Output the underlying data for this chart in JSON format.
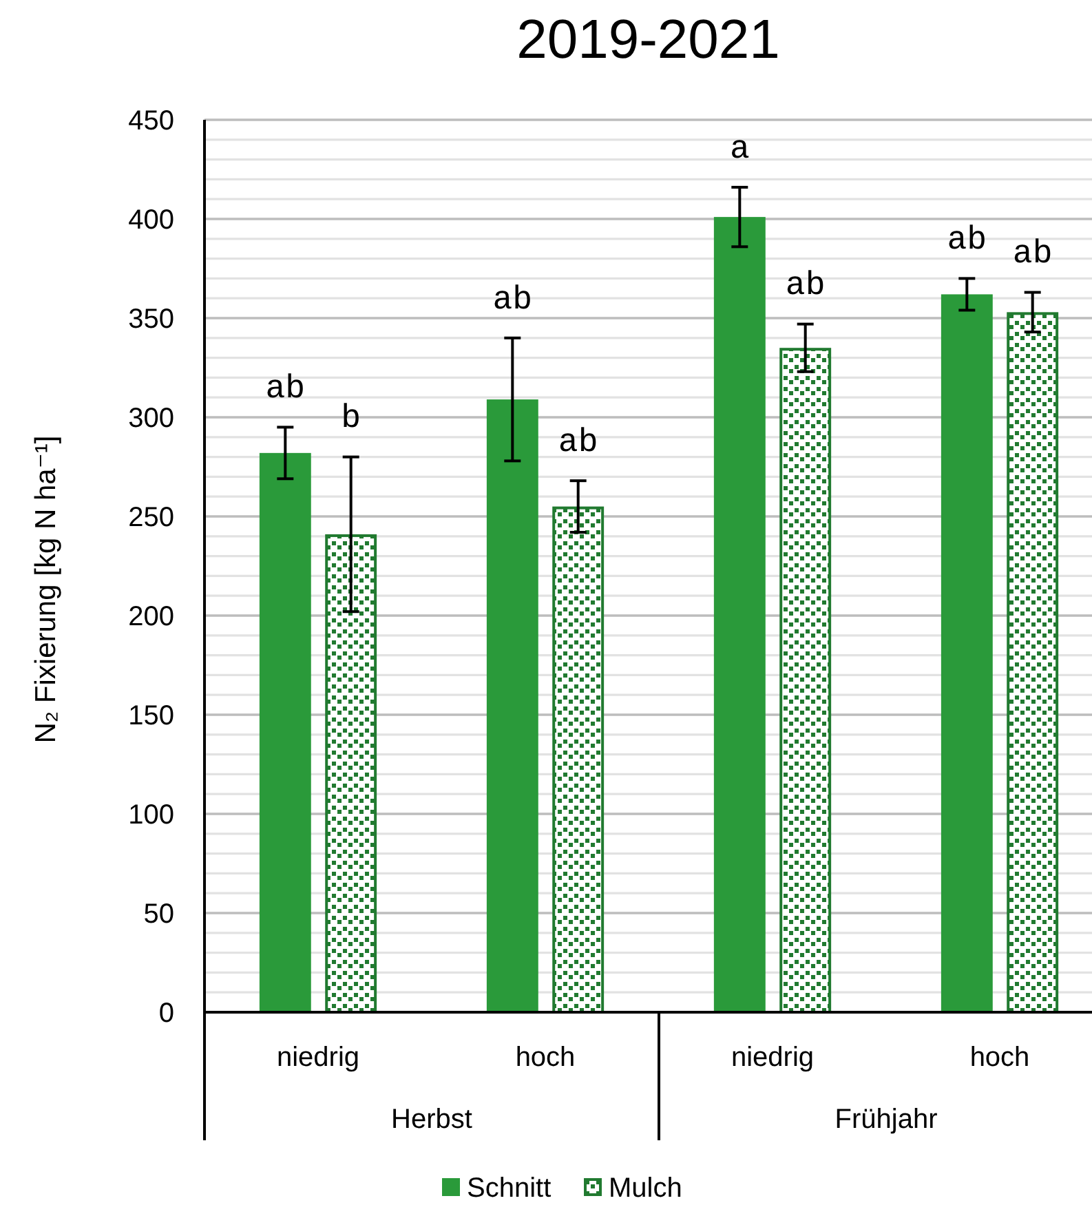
{
  "chart_data": {
    "type": "bar",
    "title": "2019-2021",
    "ylabel": "N₂ Fixierung [kg N ha⁻¹]",
    "categories": [
      "niedrig",
      "hoch",
      "niedrig",
      "hoch"
    ],
    "series": [
      {
        "name": "Schnitt",
        "color": "#2a9a3a",
        "values": [
          282,
          309,
          401,
          362
        ],
        "errors": [
          13,
          31,
          15,
          8
        ]
      },
      {
        "name": "Mulch",
        "color": "#217a30",
        "values": [
          241,
          255,
          335,
          353
        ],
        "errors": [
          39,
          13,
          12,
          10
        ]
      }
    ],
    "ylim": [
      0,
      450
    ],
    "yticks": [
      0,
      {
        "value": 10,
        "label": null
      },
      {
        "value": 20,
        "label": null
      },
      {
        "value": 30,
        "label": null
      },
      {
        "value": 40,
        "label": null
      },
      50,
      {
        "value": 60,
        "label": null
      },
      {
        "value": 70,
        "label": null
      },
      {
        "value": 80,
        "label": null
      },
      {
        "value": 90,
        "label": null
      },
      100,
      {
        "value": 110,
        "label": null
      },
      {
        "value": 120,
        "label": null
      },
      {
        "value": 130,
        "label": null
      },
      {
        "value": 140,
        "label": null
      },
      150,
      {
        "value": 160,
        "label": null
      },
      {
        "value": 170,
        "label": null
      },
      {
        "value": 180,
        "label": null
      },
      {
        "value": 190,
        "label": null
      },
      200,
      {
        "value": 210,
        "label": null
      },
      {
        "value": 220,
        "label": null
      },
      {
        "value": 230,
        "label": null
      },
      {
        "value": 240,
        "label": null
      },
      250,
      {
        "value": 260,
        "label": null
      },
      {
        "value": 270,
        "label": null
      },
      {
        "value": 280,
        "label": null
      },
      {
        "value": 290,
        "label": null
      },
      300,
      {
        "value": 310,
        "label": null
      },
      {
        "value": 320,
        "label": null
      },
      {
        "value": 330,
        "label": null
      },
      {
        "value": 340,
        "label": null
      },
      350,
      {
        "value": 360,
        "label": null
      },
      {
        "value": 370,
        "label": null
      },
      {
        "value": 380,
        "label": null
      },
      {
        "value": 390,
        "label": null
      },
      400,
      {
        "value": 410,
        "label": null
      },
      {
        "value": 420,
        "label": null
      },
      {
        "value": 430,
        "label": null
      },
      {
        "value": 440,
        "label": null
      },
      450
    ],
    "grid": "y",
    "legend": "bottom",
    "annotations": [
      "ab",
      "b",
      "ab",
      "ab",
      "a",
      "ab",
      "ab",
      "ab",
      "Herbst",
      "Frühjahr"
    ]
  }
}
